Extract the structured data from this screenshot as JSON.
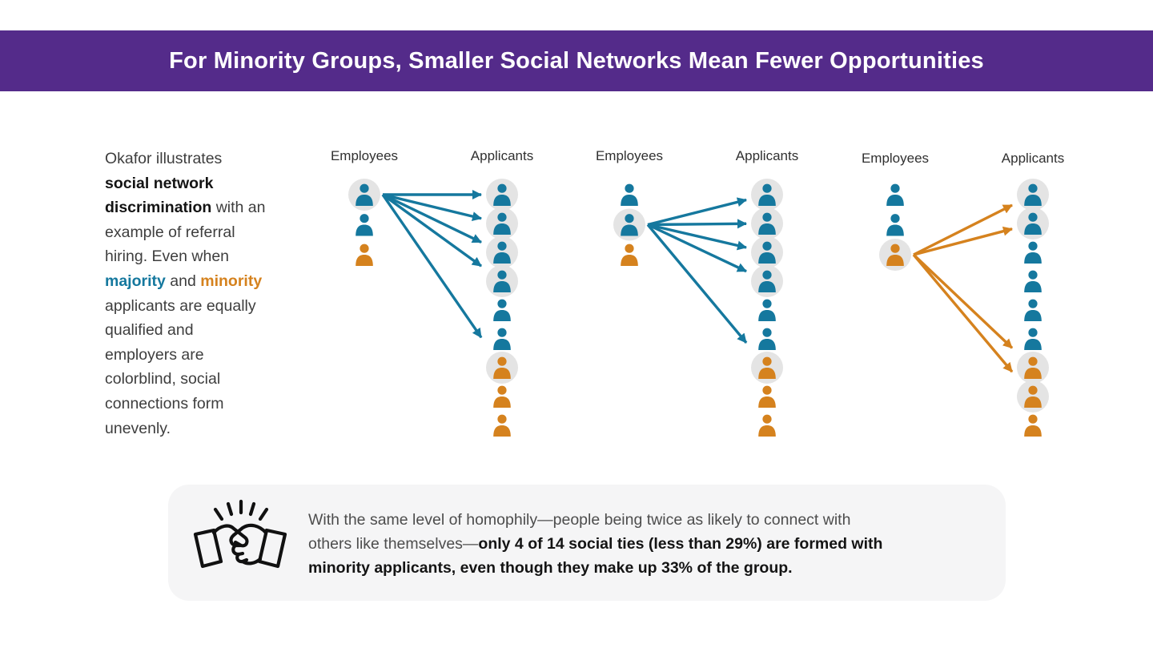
{
  "header": {
    "title": "For Minority Groups, Smaller Social Networks Mean Fewer Opportunities",
    "bg_color": "#542b8a",
    "text_color": "#ffffff"
  },
  "colors": {
    "majority": "#15789e",
    "minority": "#d5821e",
    "highlight_circle": "#e4e4e4",
    "callout_bg": "#f5f5f6"
  },
  "intro": {
    "segments": [
      {
        "text": "Okafor illustrates",
        "style": "normal",
        "break_after": true
      },
      {
        "text": "social network",
        "style": "bold",
        "break_after": true
      },
      {
        "text": "discrimination",
        "style": "bold"
      },
      {
        "text": " with an",
        "style": "normal",
        "break_after": true
      },
      {
        "text": "example of referral",
        "style": "normal",
        "break_after": true
      },
      {
        "text": "hiring. Even when",
        "style": "normal",
        "break_after": true
      },
      {
        "text": "majority",
        "style": "majority"
      },
      {
        "text": " and ",
        "style": "normal"
      },
      {
        "text": "minority",
        "style": "minority",
        "break_after": true
      },
      {
        "text": "applicants are equally",
        "style": "normal",
        "break_after": true
      },
      {
        "text": "qualified and",
        "style": "normal",
        "break_after": true
      },
      {
        "text": "employers are",
        "style": "normal",
        "break_after": true
      },
      {
        "text": "colorblind, social",
        "style": "normal",
        "break_after": true
      },
      {
        "text": "connections form",
        "style": "normal",
        "break_after": true
      },
      {
        "text": "unevenly.",
        "style": "normal"
      }
    ]
  },
  "panels": [
    {
      "employees_label": "Employees",
      "applicants_label": "Applicants",
      "employees": [
        {
          "group": "majority",
          "highlighted": true
        },
        {
          "group": "majority",
          "highlighted": false
        },
        {
          "group": "minority",
          "highlighted": false
        }
      ],
      "applicants": [
        {
          "group": "majority",
          "highlighted": true
        },
        {
          "group": "majority",
          "highlighted": true
        },
        {
          "group": "majority",
          "highlighted": true
        },
        {
          "group": "majority",
          "highlighted": true
        },
        {
          "group": "majority",
          "highlighted": false
        },
        {
          "group": "majority",
          "highlighted": false
        },
        {
          "group": "minority",
          "highlighted": true
        },
        {
          "group": "minority",
          "highlighted": false
        },
        {
          "group": "minority",
          "highlighted": false
        }
      ],
      "arrows": {
        "from_employee": 0,
        "to_applicants": [
          0,
          1,
          2,
          3,
          6
        ],
        "group": "majority"
      }
    },
    {
      "employees_label": "Employees",
      "applicants_label": "Applicants",
      "employees": [
        {
          "group": "majority",
          "highlighted": false
        },
        {
          "group": "majority",
          "highlighted": true
        },
        {
          "group": "minority",
          "highlighted": false
        }
      ],
      "applicants": [
        {
          "group": "majority",
          "highlighted": true
        },
        {
          "group": "majority",
          "highlighted": true
        },
        {
          "group": "majority",
          "highlighted": true
        },
        {
          "group": "majority",
          "highlighted": true
        },
        {
          "group": "majority",
          "highlighted": false
        },
        {
          "group": "majority",
          "highlighted": false
        },
        {
          "group": "minority",
          "highlighted": true
        },
        {
          "group": "minority",
          "highlighted": false
        },
        {
          "group": "minority",
          "highlighted": false
        }
      ],
      "arrows": {
        "from_employee": 1,
        "to_applicants": [
          0,
          1,
          2,
          3,
          6
        ],
        "group": "majority"
      }
    },
    {
      "employees_label": "Employees",
      "applicants_label": "Applicants",
      "employees": [
        {
          "group": "majority",
          "highlighted": false
        },
        {
          "group": "majority",
          "highlighted": false
        },
        {
          "group": "minority",
          "highlighted": true
        }
      ],
      "applicants": [
        {
          "group": "majority",
          "highlighted": true
        },
        {
          "group": "majority",
          "highlighted": true
        },
        {
          "group": "majority",
          "highlighted": false
        },
        {
          "group": "majority",
          "highlighted": false
        },
        {
          "group": "majority",
          "highlighted": false
        },
        {
          "group": "majority",
          "highlighted": false
        },
        {
          "group": "minority",
          "highlighted": true
        },
        {
          "group": "minority",
          "highlighted": true
        },
        {
          "group": "minority",
          "highlighted": false
        }
      ],
      "arrows": {
        "from_employee": 2,
        "to_applicants": [
          0,
          1,
          6,
          7
        ],
        "group": "minority"
      }
    }
  ],
  "callout": {
    "icon": "handshake-icon",
    "segments": [
      {
        "text": "With the same level of homophily—people being twice as likely to connect with",
        "style": "normal",
        "break_after": true
      },
      {
        "text": "others like themselves—",
        "style": "normal"
      },
      {
        "text": "only 4 of 14 social ties (less than 29%) are formed with",
        "style": "bold",
        "break_after": true
      },
      {
        "text": "minority applicants, even though they make up 33% of the group.",
        "style": "bold"
      }
    ]
  }
}
